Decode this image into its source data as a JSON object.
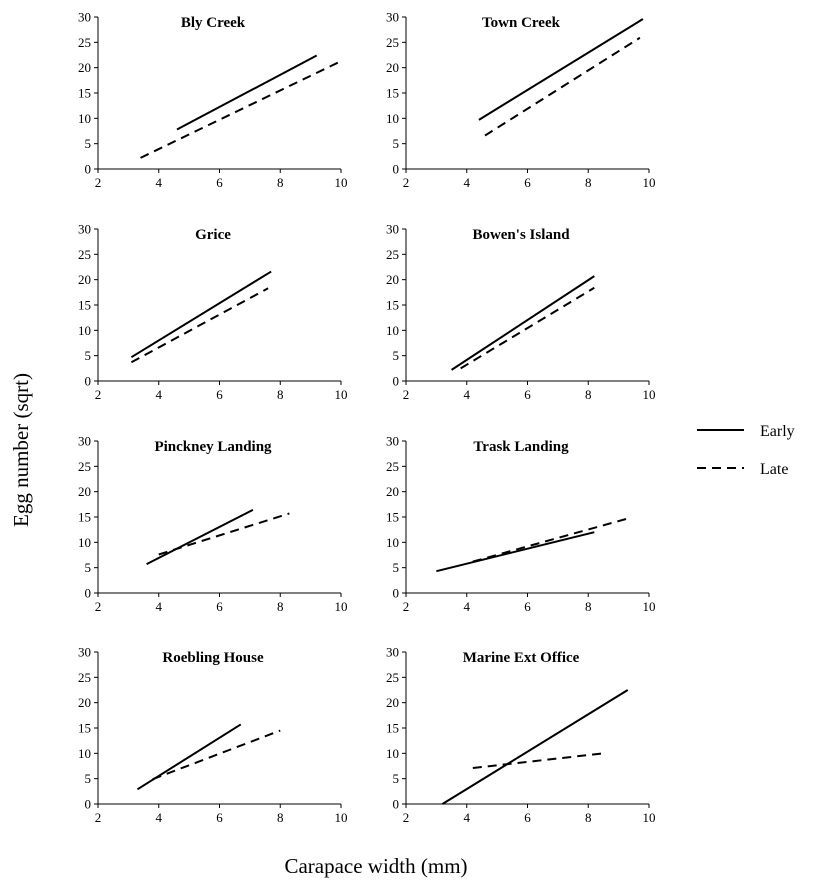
{
  "figure": {
    "ylabel": "Egg number (sqrt)",
    "xlabel": "Carapace width (mm)",
    "legend": {
      "position": "right",
      "entries": [
        {
          "label": "Early",
          "style": "solid"
        },
        {
          "label": "Late",
          "style": "dashed"
        }
      ]
    }
  },
  "chart_data": [
    {
      "type": "line",
      "title": "Bly Creek",
      "xlim": [
        2,
        10
      ],
      "ylim": [
        0,
        30
      ],
      "x_ticks": [
        "2",
        "4",
        "6",
        "8",
        "10"
      ],
      "y_ticks": [
        "0",
        "5",
        "10",
        "15",
        "20",
        "25",
        "30"
      ],
      "series": [
        {
          "name": "Early",
          "style": "solid",
          "x": [
            4.6,
            9.2
          ],
          "y": [
            7.8,
            22.4
          ]
        },
        {
          "name": "Late",
          "style": "dashed",
          "x": [
            3.4,
            9.9
          ],
          "y": [
            2.2,
            21.0
          ]
        }
      ]
    },
    {
      "type": "line",
      "title": "Town Creek",
      "xlim": [
        2,
        10
      ],
      "ylim": [
        0,
        30
      ],
      "x_ticks": [
        "2",
        "4",
        "6",
        "8",
        "10"
      ],
      "y_ticks": [
        "0",
        "5",
        "10",
        "15",
        "20",
        "25",
        "30"
      ],
      "series": [
        {
          "name": "Early",
          "style": "solid",
          "x": [
            4.4,
            9.8
          ],
          "y": [
            9.7,
            29.6
          ]
        },
        {
          "name": "Late",
          "style": "dashed",
          "x": [
            4.6,
            9.7
          ],
          "y": [
            6.6,
            25.9
          ]
        }
      ]
    },
    {
      "type": "line",
      "title": "Grice",
      "xlim": [
        2,
        10
      ],
      "ylim": [
        0,
        30
      ],
      "x_ticks": [
        "2",
        "4",
        "6",
        "8",
        "10"
      ],
      "y_ticks": [
        "0",
        "5",
        "10",
        "15",
        "20",
        "25",
        "30"
      ],
      "series": [
        {
          "name": "Early",
          "style": "solid",
          "x": [
            3.1,
            7.7
          ],
          "y": [
            4.7,
            21.6
          ]
        },
        {
          "name": "Late",
          "style": "dashed",
          "x": [
            3.1,
            7.6
          ],
          "y": [
            3.7,
            18.3
          ]
        }
      ]
    },
    {
      "type": "line",
      "title": "Bowen's Island",
      "xlim": [
        2,
        10
      ],
      "ylim": [
        0,
        30
      ],
      "x_ticks": [
        "2",
        "4",
        "6",
        "8",
        "10"
      ],
      "y_ticks": [
        "0",
        "5",
        "10",
        "15",
        "20",
        "25",
        "30"
      ],
      "series": [
        {
          "name": "Early",
          "style": "solid",
          "x": [
            3.5,
            8.2
          ],
          "y": [
            2.2,
            20.7
          ]
        },
        {
          "name": "Late",
          "style": "dashed",
          "x": [
            3.8,
            8.2
          ],
          "y": [
            2.5,
            18.4
          ]
        }
      ]
    },
    {
      "type": "line",
      "title": "Pinckney Landing",
      "xlim": [
        2,
        10
      ],
      "ylim": [
        0,
        30
      ],
      "x_ticks": [
        "2",
        "4",
        "6",
        "8",
        "10"
      ],
      "y_ticks": [
        "0",
        "5",
        "10",
        "15",
        "20",
        "25",
        "30"
      ],
      "series": [
        {
          "name": "Early",
          "style": "solid",
          "x": [
            3.6,
            7.1
          ],
          "y": [
            5.7,
            16.4
          ]
        },
        {
          "name": "Late",
          "style": "dashed",
          "x": [
            4.0,
            8.3
          ],
          "y": [
            7.6,
            15.7
          ]
        }
      ]
    },
    {
      "type": "line",
      "title": "Trask Landing",
      "xlim": [
        2,
        10
      ],
      "ylim": [
        0,
        30
      ],
      "x_ticks": [
        "2",
        "4",
        "6",
        "8",
        "10"
      ],
      "y_ticks": [
        "0",
        "5",
        "10",
        "15",
        "20",
        "25",
        "30"
      ],
      "series": [
        {
          "name": "Early",
          "style": "solid",
          "x": [
            3.0,
            8.2
          ],
          "y": [
            4.3,
            12.0
          ]
        },
        {
          "name": "Late",
          "style": "dashed",
          "x": [
            4.2,
            9.3
          ],
          "y": [
            6.2,
            14.7
          ]
        }
      ]
    },
    {
      "type": "line",
      "title": "Roebling House",
      "xlim": [
        2,
        10
      ],
      "ylim": [
        0,
        30
      ],
      "x_ticks": [
        "2",
        "4",
        "6",
        "8",
        "10"
      ],
      "y_ticks": [
        "0",
        "5",
        "10",
        "15",
        "20",
        "25",
        "30"
      ],
      "series": [
        {
          "name": "Early",
          "style": "solid",
          "x": [
            3.3,
            6.7
          ],
          "y": [
            2.9,
            15.7
          ]
        },
        {
          "name": "Late",
          "style": "dashed",
          "x": [
            3.8,
            8.0
          ],
          "y": [
            4.9,
            14.5
          ]
        }
      ]
    },
    {
      "type": "line",
      "title": "Marine Ext Office",
      "xlim": [
        2,
        10
      ],
      "ylim": [
        0,
        30
      ],
      "x_ticks": [
        "2",
        "4",
        "6",
        "8",
        "10"
      ],
      "y_ticks": [
        "0",
        "5",
        "10",
        "15",
        "20",
        "25",
        "30"
      ],
      "series": [
        {
          "name": "Early",
          "style": "solid",
          "x": [
            3.2,
            9.3
          ],
          "y": [
            0.0,
            22.5
          ]
        },
        {
          "name": "Late",
          "style": "dashed",
          "x": [
            4.2,
            8.5
          ],
          "y": [
            7.1,
            10.0
          ]
        }
      ]
    }
  ]
}
